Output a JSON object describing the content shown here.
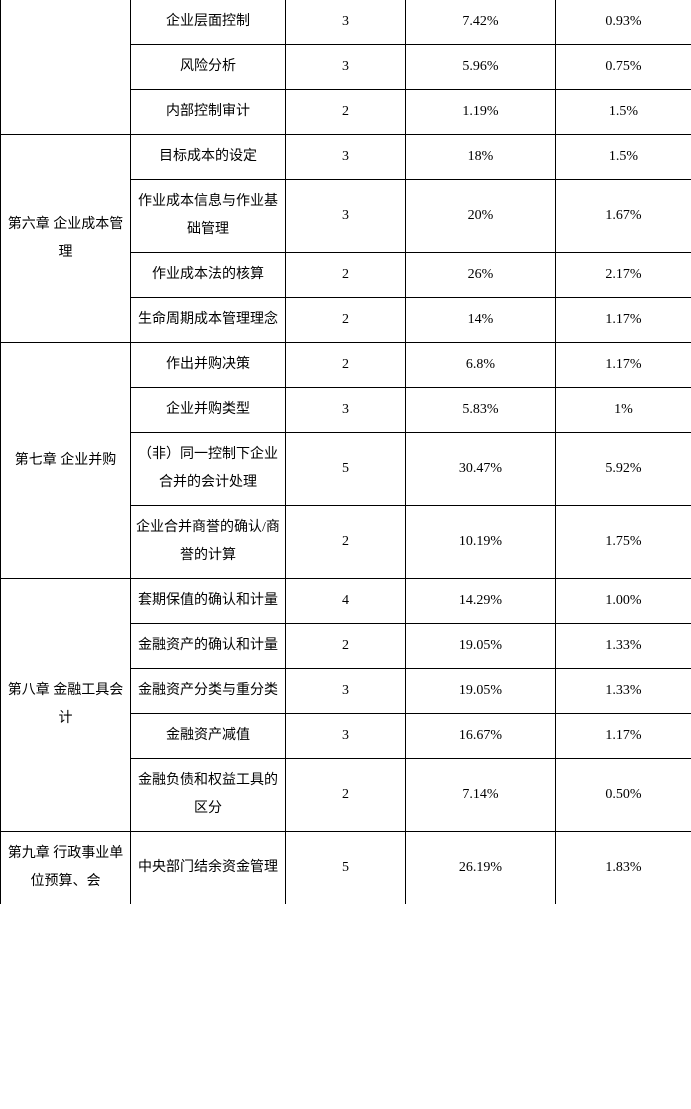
{
  "table": {
    "columns": {
      "widths": [
        130,
        155,
        120,
        150,
        136
      ]
    },
    "border_color": "#000000",
    "background_color": "#ffffff",
    "text_color": "#000000",
    "font_size": 14,
    "sections": [
      {
        "chapter": "",
        "rows": [
          {
            "topic": "企业层面控制",
            "count": "3",
            "pct1": "7.42%",
            "pct2": "0.93%"
          },
          {
            "topic": "风险分析",
            "count": "3",
            "pct1": "5.96%",
            "pct2": "0.75%"
          },
          {
            "topic": "内部控制审计",
            "count": "2",
            "pct1": "1.19%",
            "pct2": "1.5%"
          }
        ]
      },
      {
        "chapter": "第六章 企业成本管理",
        "rows": [
          {
            "topic": "目标成本的设定",
            "count": "3",
            "pct1": "18%",
            "pct2": "1.5%"
          },
          {
            "topic": "作业成本信息与作业基础管理",
            "count": "3",
            "pct1": "20%",
            "pct2": "1.67%"
          },
          {
            "topic": "作业成本法的核算",
            "count": "2",
            "pct1": "26%",
            "pct2": "2.17%"
          },
          {
            "topic": "生命周期成本管理理念",
            "count": "2",
            "pct1": "14%",
            "pct2": "1.17%"
          }
        ]
      },
      {
        "chapter": "第七章 企业并购",
        "rows": [
          {
            "topic": "作出并购决策",
            "count": "2",
            "pct1": "6.8%",
            "pct2": "1.17%"
          },
          {
            "topic": "企业并购类型",
            "count": "3",
            "pct1": "5.83%",
            "pct2": "1%"
          },
          {
            "topic": "（非）同一控制下企业合并的会计处理",
            "count": "5",
            "pct1": "30.47%",
            "pct2": "5.92%"
          },
          {
            "topic": "企业合并商誉的确认/商誉的计算",
            "count": "2",
            "pct1": "10.19%",
            "pct2": "1.75%"
          }
        ]
      },
      {
        "chapter": "第八章 金融工具会计",
        "rows": [
          {
            "topic": "套期保值的确认和计量",
            "count": "4",
            "pct1": "14.29%",
            "pct2": "1.00%"
          },
          {
            "topic": "金融资产的确认和计量",
            "count": "2",
            "pct1": "19.05%",
            "pct2": "1.33%"
          },
          {
            "topic": "金融资产分类与重分类",
            "count": "3",
            "pct1": "19.05%",
            "pct2": "1.33%"
          },
          {
            "topic": "金融资产减值",
            "count": "3",
            "pct1": "16.67%",
            "pct2": "1.17%"
          },
          {
            "topic": "金融负债和权益工具的区分",
            "count": "2",
            "pct1": "7.14%",
            "pct2": "0.50%"
          }
        ]
      },
      {
        "chapter": "第九章 行政事业单位预算、会",
        "chapter_partial": true,
        "rows": [
          {
            "topic": "中央部门结余资金管理",
            "count": "5",
            "pct1": "26.19%",
            "pct2": "1.83%"
          }
        ]
      }
    ]
  }
}
